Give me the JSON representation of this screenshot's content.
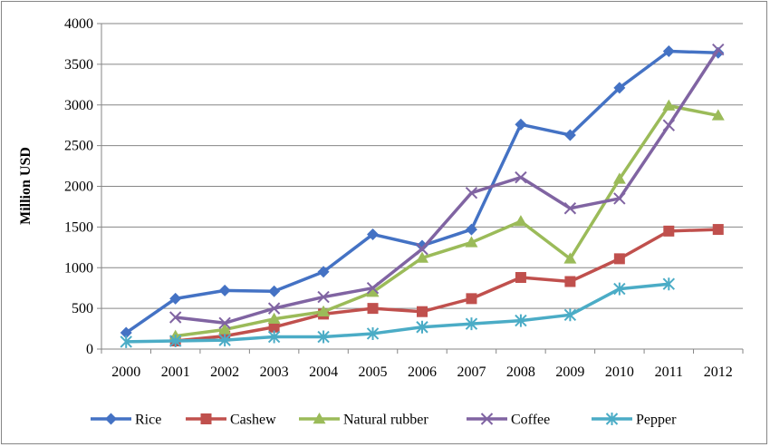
{
  "chart_data": {
    "type": "line",
    "title": "",
    "xlabel": "",
    "ylabel": "Million USD",
    "ylim": [
      0,
      4000
    ],
    "yticks": [
      "0",
      "500",
      "1000",
      "1500",
      "2000",
      "2500",
      "3000",
      "3500",
      "4000"
    ],
    "categories": [
      "2000",
      "2001",
      "2002",
      "2003",
      "2004",
      "2005",
      "2006",
      "2007",
      "2008",
      "2009",
      "2010",
      "2011",
      "2012"
    ],
    "grid": true,
    "legend_position": "bottom",
    "series": [
      {
        "name": "Rice",
        "color": "#4472C4",
        "marker": "diamond",
        "values": [
          200,
          620,
          720,
          710,
          950,
          1410,
          1270,
          1470,
          2760,
          2630,
          3210,
          3660,
          3640
        ]
      },
      {
        "name": "Cashew",
        "color": "#C0504D",
        "marker": "square",
        "values": [
          null,
          100,
          160,
          270,
          430,
          500,
          460,
          620,
          880,
          830,
          1110,
          1450,
          1470
        ]
      },
      {
        "name": "Natural rubber",
        "color": "#9BBB59",
        "marker": "triangle",
        "values": [
          null,
          160,
          240,
          370,
          460,
          700,
          1120,
          1310,
          1570,
          1110,
          2090,
          2990,
          2870
        ]
      },
      {
        "name": "Coffee",
        "color": "#8064A2",
        "marker": "x",
        "values": [
          null,
          390,
          320,
          500,
          640,
          750,
          1230,
          1920,
          2110,
          1730,
          1850,
          2750,
          3680
        ]
      },
      {
        "name": "Pepper",
        "color": "#4BACC6",
        "marker": "star",
        "values": [
          90,
          100,
          110,
          150,
          150,
          190,
          270,
          310,
          350,
          420,
          740,
          800,
          null
        ]
      }
    ]
  }
}
